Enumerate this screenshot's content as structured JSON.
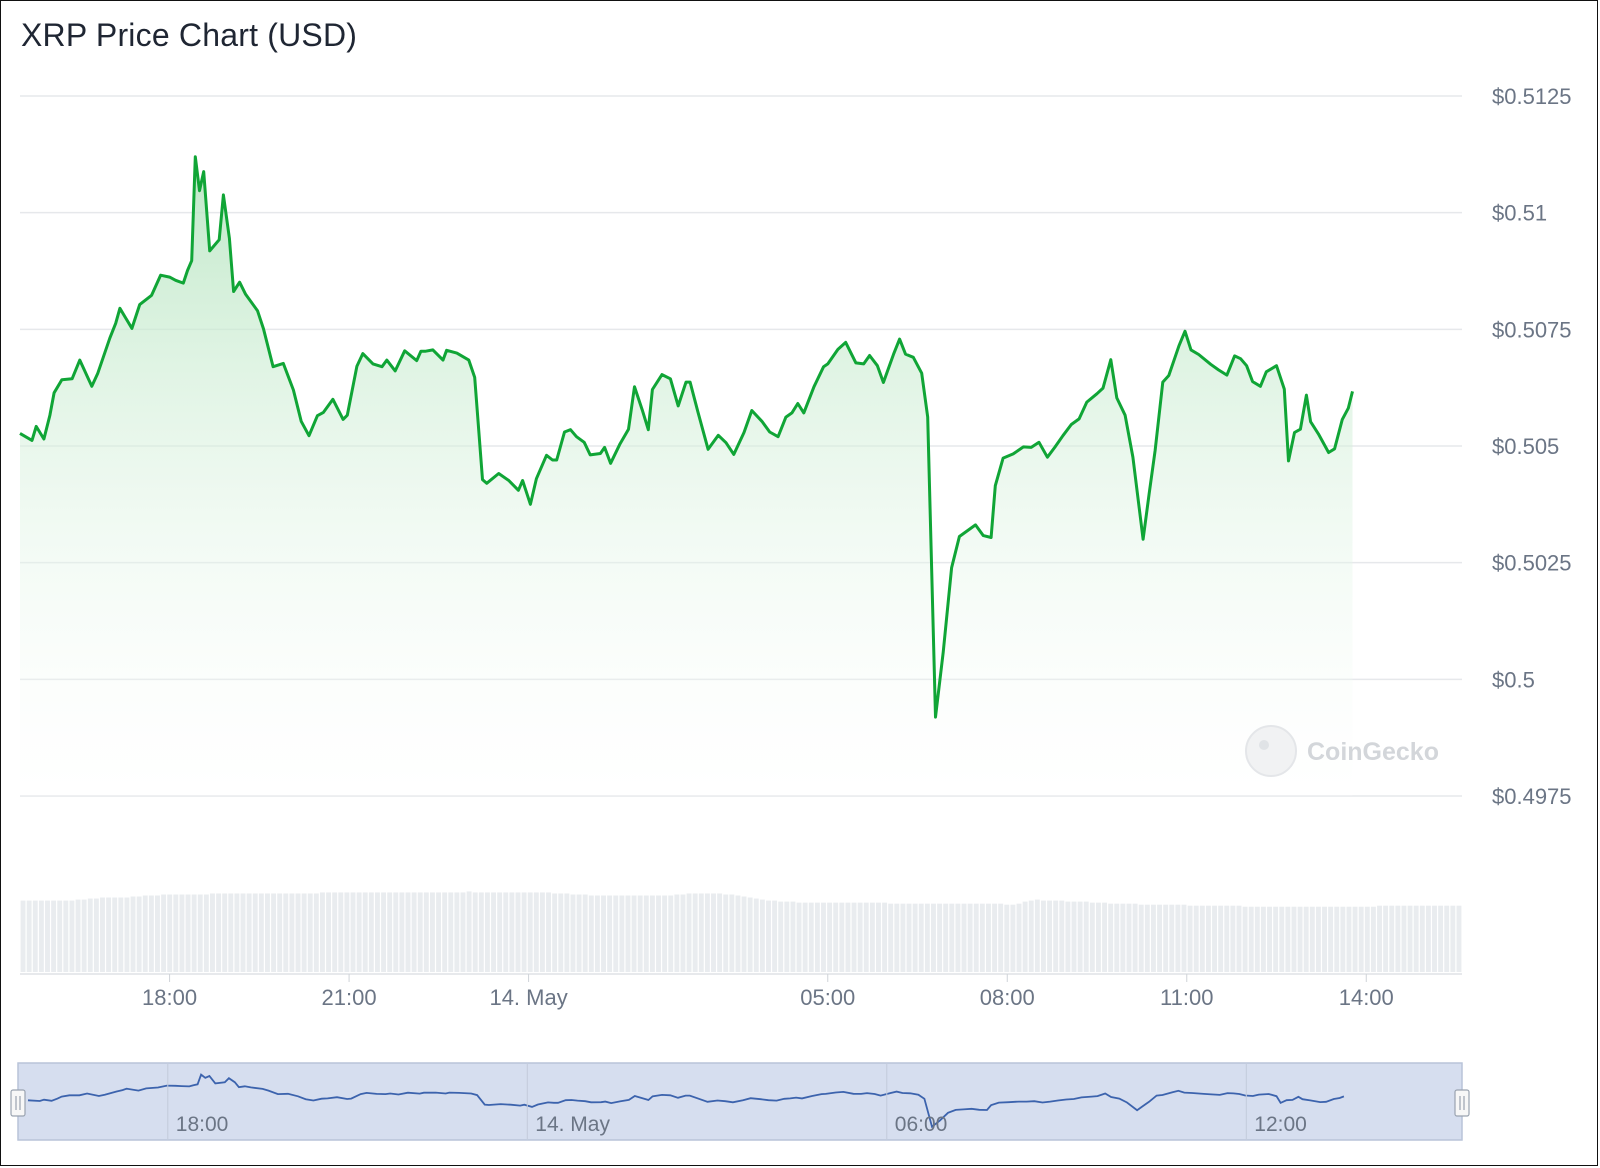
{
  "title": "XRP Price Chart (USD)",
  "watermark": "CoinGecko",
  "colors": {
    "price_line": "#10a536",
    "area_top": "#b4e4be",
    "gridline": "#e6e8eb",
    "volume_bar": "#e9ecef",
    "navigator_fill": "#d6deef",
    "navigator_line": "#3c63ad",
    "text": "#6b7585"
  },
  "chart_data": {
    "type": "area",
    "currency": "USD",
    "ylim": [
      0.4975,
      0.5125
    ],
    "y_ticks": [
      "$0.4975",
      "$0.5",
      "$0.5025",
      "$0.505",
      "$0.5075",
      "$0.51",
      "$0.5125"
    ],
    "y_tick_values": [
      0.4975,
      0.5,
      0.5025,
      0.505,
      0.5075,
      0.51,
      0.5125
    ],
    "x_range_hours": [
      15.5,
      39.6
    ],
    "x_ticks": [
      {
        "label": "18:00",
        "hour": 18
      },
      {
        "label": "21:00",
        "hour": 21
      },
      {
        "label": "14. May",
        "hour": 24
      },
      {
        "label": "05:00",
        "hour": 29
      },
      {
        "label": "08:00",
        "hour": 32
      },
      {
        "label": "11:00",
        "hour": 35
      },
      {
        "label": "14:00",
        "hour": 38
      }
    ],
    "grid": true,
    "series": [
      {
        "points": [
          [
            15.5,
            0.50527
          ],
          [
            15.7,
            0.50512
          ],
          [
            15.77,
            0.50542
          ],
          [
            15.9,
            0.50515
          ],
          [
            16.0,
            0.50566
          ],
          [
            16.07,
            0.50614
          ],
          [
            16.2,
            0.50642
          ],
          [
            16.37,
            0.50644
          ],
          [
            16.5,
            0.50684
          ],
          [
            16.7,
            0.50628
          ],
          [
            16.8,
            0.50656
          ],
          [
            17.0,
            0.50731
          ],
          [
            17.1,
            0.50763
          ],
          [
            17.17,
            0.50795
          ],
          [
            17.37,
            0.50752
          ],
          [
            17.5,
            0.50803
          ],
          [
            17.7,
            0.50823
          ],
          [
            17.85,
            0.50866
          ],
          [
            18.0,
            0.50862
          ],
          [
            18.1,
            0.50855
          ],
          [
            18.23,
            0.50849
          ],
          [
            18.3,
            0.50876
          ],
          [
            18.37,
            0.50897
          ],
          [
            18.43,
            0.5112
          ],
          [
            18.5,
            0.51047
          ],
          [
            18.57,
            0.51088
          ],
          [
            18.67,
            0.50918
          ],
          [
            18.83,
            0.50942
          ],
          [
            18.9,
            0.51038
          ],
          [
            19.0,
            0.50945
          ],
          [
            19.07,
            0.50831
          ],
          [
            19.17,
            0.50851
          ],
          [
            19.27,
            0.50825
          ],
          [
            19.47,
            0.5079
          ],
          [
            19.57,
            0.50751
          ],
          [
            19.73,
            0.5067
          ],
          [
            19.9,
            0.50677
          ],
          [
            20.07,
            0.5062
          ],
          [
            20.2,
            0.50553
          ],
          [
            20.33,
            0.50522
          ],
          [
            20.47,
            0.50565
          ],
          [
            20.57,
            0.50572
          ],
          [
            20.73,
            0.506
          ],
          [
            20.9,
            0.50557
          ],
          [
            20.97,
            0.50566
          ],
          [
            21.13,
            0.50671
          ],
          [
            21.23,
            0.50698
          ],
          [
            21.4,
            0.50676
          ],
          [
            21.55,
            0.5067
          ],
          [
            21.63,
            0.50684
          ],
          [
            21.77,
            0.50661
          ],
          [
            21.93,
            0.50704
          ],
          [
            22.13,
            0.50683
          ],
          [
            22.2,
            0.50703
          ],
          [
            22.27,
            0.50703
          ],
          [
            22.4,
            0.50706
          ],
          [
            22.57,
            0.50684
          ],
          [
            22.63,
            0.50705
          ],
          [
            22.8,
            0.50699
          ],
          [
            23.0,
            0.50684
          ],
          [
            23.1,
            0.50647
          ],
          [
            23.23,
            0.50428
          ],
          [
            23.3,
            0.5042
          ],
          [
            23.5,
            0.50441
          ],
          [
            23.67,
            0.50426
          ],
          [
            23.83,
            0.50405
          ],
          [
            23.9,
            0.50426
          ],
          [
            24.03,
            0.50375
          ],
          [
            24.13,
            0.5043
          ],
          [
            24.3,
            0.5048
          ],
          [
            24.4,
            0.5047
          ],
          [
            24.47,
            0.5047
          ],
          [
            24.6,
            0.5053
          ],
          [
            24.7,
            0.50535
          ],
          [
            24.8,
            0.5052
          ],
          [
            24.93,
            0.50508
          ],
          [
            25.03,
            0.50481
          ],
          [
            25.2,
            0.50484
          ],
          [
            25.27,
            0.50497
          ],
          [
            25.37,
            0.50463
          ],
          [
            25.53,
            0.50505
          ],
          [
            25.67,
            0.50536
          ],
          [
            25.77,
            0.50627
          ],
          [
            25.9,
            0.50577
          ],
          [
            26.0,
            0.50535
          ],
          [
            26.07,
            0.50621
          ],
          [
            26.23,
            0.50653
          ],
          [
            26.37,
            0.50644
          ],
          [
            26.5,
            0.50586
          ],
          [
            26.63,
            0.50637
          ],
          [
            26.7,
            0.50637
          ],
          [
            26.83,
            0.50573
          ],
          [
            27.0,
            0.50493
          ],
          [
            27.17,
            0.50523
          ],
          [
            27.3,
            0.50507
          ],
          [
            27.43,
            0.50482
          ],
          [
            27.6,
            0.50529
          ],
          [
            27.73,
            0.50576
          ],
          [
            27.9,
            0.50553
          ],
          [
            28.03,
            0.5053
          ],
          [
            28.17,
            0.5052
          ],
          [
            28.3,
            0.50562
          ],
          [
            28.4,
            0.50571
          ],
          [
            28.5,
            0.50591
          ],
          [
            28.6,
            0.50571
          ],
          [
            28.77,
            0.50627
          ],
          [
            28.93,
            0.5067
          ],
          [
            29.0,
            0.50676
          ],
          [
            29.17,
            0.50707
          ],
          [
            29.3,
            0.50722
          ],
          [
            29.47,
            0.50678
          ],
          [
            29.6,
            0.50676
          ],
          [
            29.7,
            0.50694
          ],
          [
            29.83,
            0.50672
          ],
          [
            29.93,
            0.50636
          ],
          [
            30.1,
            0.50697
          ],
          [
            30.2,
            0.50729
          ],
          [
            30.3,
            0.50697
          ],
          [
            30.43,
            0.5069
          ],
          [
            30.57,
            0.50656
          ],
          [
            30.67,
            0.50562
          ],
          [
            30.8,
            0.49919
          ],
          [
            30.93,
            0.50058
          ],
          [
            31.07,
            0.50239
          ],
          [
            31.2,
            0.50306
          ],
          [
            31.33,
            0.50318
          ],
          [
            31.47,
            0.50331
          ],
          [
            31.6,
            0.50308
          ],
          [
            31.73,
            0.50304
          ],
          [
            31.8,
            0.50415
          ],
          [
            31.93,
            0.50474
          ],
          [
            32.1,
            0.50483
          ],
          [
            32.27,
            0.50498
          ],
          [
            32.4,
            0.50497
          ],
          [
            32.53,
            0.50508
          ],
          [
            32.67,
            0.50476
          ],
          [
            32.8,
            0.50498
          ],
          [
            32.93,
            0.50522
          ],
          [
            33.07,
            0.50546
          ],
          [
            33.2,
            0.50558
          ],
          [
            33.33,
            0.50594
          ],
          [
            33.5,
            0.50612
          ],
          [
            33.6,
            0.50624
          ],
          [
            33.73,
            0.50685
          ],
          [
            33.83,
            0.50603
          ],
          [
            33.97,
            0.50566
          ],
          [
            34.1,
            0.50476
          ],
          [
            34.27,
            0.503
          ],
          [
            34.37,
            0.50397
          ],
          [
            34.47,
            0.5049
          ],
          [
            34.6,
            0.50637
          ],
          [
            34.7,
            0.50651
          ],
          [
            34.87,
            0.50715
          ],
          [
            34.97,
            0.50746
          ],
          [
            35.07,
            0.50706
          ],
          [
            35.2,
            0.50696
          ],
          [
            35.4,
            0.50675
          ],
          [
            35.53,
            0.50663
          ],
          [
            35.67,
            0.50652
          ],
          [
            35.8,
            0.50693
          ],
          [
            35.9,
            0.50687
          ],
          [
            36.0,
            0.50672
          ],
          [
            36.1,
            0.50638
          ],
          [
            36.23,
            0.50628
          ],
          [
            36.33,
            0.50659
          ],
          [
            36.5,
            0.50672
          ],
          [
            36.63,
            0.50622
          ],
          [
            36.7,
            0.50468
          ],
          [
            36.8,
            0.50529
          ],
          [
            36.9,
            0.50536
          ],
          [
            37.0,
            0.50609
          ],
          [
            37.07,
            0.50552
          ],
          [
            37.2,
            0.50526
          ],
          [
            37.37,
            0.50486
          ],
          [
            37.47,
            0.50494
          ],
          [
            37.6,
            0.50557
          ],
          [
            37.7,
            0.50581
          ],
          [
            37.77,
            0.50617
          ]
        ]
      }
    ],
    "volume": {
      "ylim": [
        0,
        100
      ],
      "values": [
        70,
        70,
        70,
        70,
        70,
        70,
        70,
        70,
        70,
        71,
        71,
        72,
        72,
        73,
        73,
        73,
        73,
        73,
        74,
        74,
        75,
        75,
        75,
        76,
        76,
        76,
        76,
        76,
        76,
        76,
        76,
        77,
        77,
        77,
        77,
        77,
        77,
        77,
        77,
        77,
        77,
        77,
        77,
        77,
        77,
        77,
        77,
        77,
        77,
        78,
        78,
        78,
        78,
        78,
        78,
        78,
        78,
        78,
        78,
        78,
        78,
        78,
        78,
        78,
        78,
        78,
        78,
        78,
        78,
        78,
        78,
        78,
        78,
        79,
        78,
        78,
        78,
        78,
        78,
        78,
        78,
        78,
        78,
        78,
        78,
        78,
        78,
        77,
        77,
        77,
        76,
        76,
        76,
        75,
        75,
        75,
        75,
        75,
        75,
        75,
        75,
        75,
        75,
        75,
        75,
        75,
        75,
        76,
        76,
        77,
        77,
        77,
        77,
        77,
        77,
        76,
        76,
        75,
        74,
        73,
        72,
        71,
        70,
        70,
        69,
        69,
        69,
        68,
        68,
        68,
        68,
        68,
        68,
        68,
        68,
        68,
        68,
        68,
        68,
        68,
        68,
        68,
        67,
        67,
        67,
        67,
        67,
        67,
        67,
        67,
        67,
        67,
        67,
        67,
        67,
        67,
        67,
        67,
        67,
        67,
        67,
        66,
        66,
        67,
        69,
        70,
        71,
        70,
        70,
        70,
        70,
        69,
        69,
        69,
        69,
        68,
        68,
        68,
        67,
        67,
        67,
        67,
        67,
        66,
        66,
        66,
        66,
        66,
        66,
        66,
        66,
        65,
        65,
        65,
        65,
        65,
        65,
        65,
        65,
        65,
        64,
        64,
        64,
        64,
        64,
        64,
        64,
        64,
        64,
        64,
        64,
        64,
        64,
        64,
        64,
        64,
        64,
        64,
        64,
        64,
        64,
        64,
        65,
        65,
        65,
        65,
        65,
        65,
        65,
        65,
        65,
        65,
        65,
        65,
        65,
        65
      ]
    },
    "navigator": {
      "tick_labels": [
        {
          "label": "18:00",
          "hour": 18
        },
        {
          "label": "14. May",
          "hour": 24
        },
        {
          "label": "06:00",
          "hour": 30
        },
        {
          "label": "12:00",
          "hour": 36
        }
      ]
    }
  }
}
